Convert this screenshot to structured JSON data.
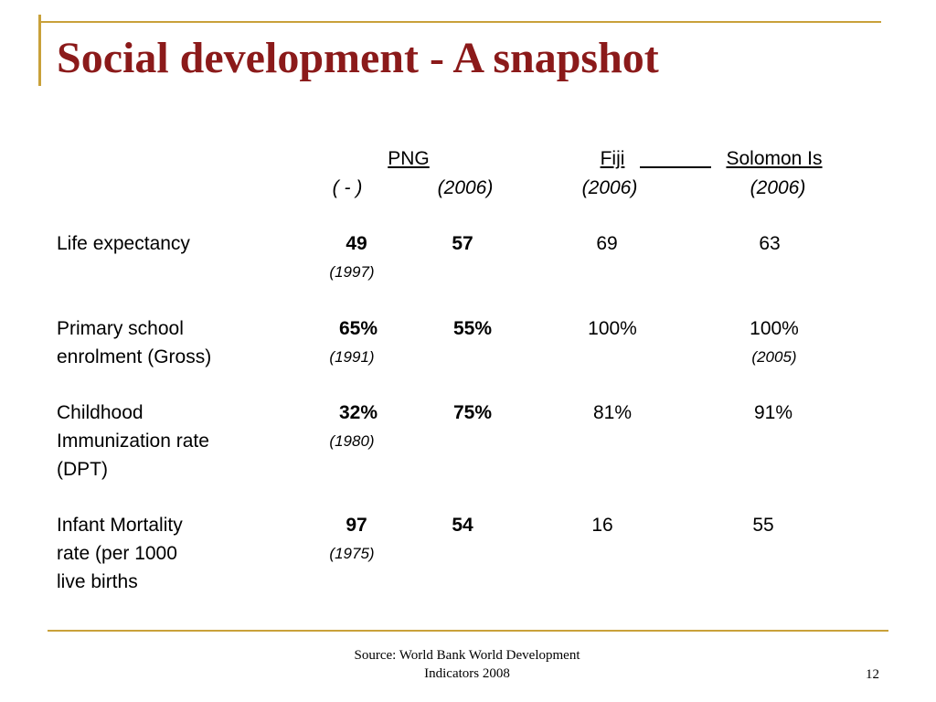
{
  "slide": {
    "title": "Social development - A snapshot",
    "page_number": "12",
    "source_line1": "Source: World Bank World Development",
    "source_line2": "Indicators 2008"
  },
  "table": {
    "columns": [
      {
        "label": "PNG",
        "year": "( - )"
      },
      {
        "label": "",
        "year": "(2006)"
      },
      {
        "label": "Fiji",
        "year": "(2006)"
      },
      {
        "label": "Solomon Is",
        "year": "(2006)"
      }
    ],
    "rows": [
      {
        "label_lines": [
          "Life expectancy"
        ],
        "png_early": "49",
        "png_early_year": "(1997)",
        "png_2006": "57",
        "fiji": "69",
        "solomon": "63",
        "solomon_year": ""
      },
      {
        "label_lines": [
          "Primary school",
          "enrolment (Gross)"
        ],
        "png_early": "65%",
        "png_early_year": "(1991)",
        "png_2006": "55%",
        "fiji": "100%",
        "solomon": "100%",
        "solomon_year": "(2005)"
      },
      {
        "label_lines": [
          "Childhood",
          "Immunization rate",
          "(DPT)"
        ],
        "png_early": "32%",
        "png_early_year": "(1980)",
        "png_2006": "75%",
        "fiji": "81%",
        "solomon": "91%",
        "solomon_year": ""
      },
      {
        "label_lines": [
          "Infant Mortality",
          "rate (per 1000",
          "live births"
        ],
        "png_early": "97",
        "png_early_year": "(1975)",
        "png_2006": "54",
        "fiji": "16",
        "solomon": "55",
        "solomon_year": ""
      }
    ]
  }
}
